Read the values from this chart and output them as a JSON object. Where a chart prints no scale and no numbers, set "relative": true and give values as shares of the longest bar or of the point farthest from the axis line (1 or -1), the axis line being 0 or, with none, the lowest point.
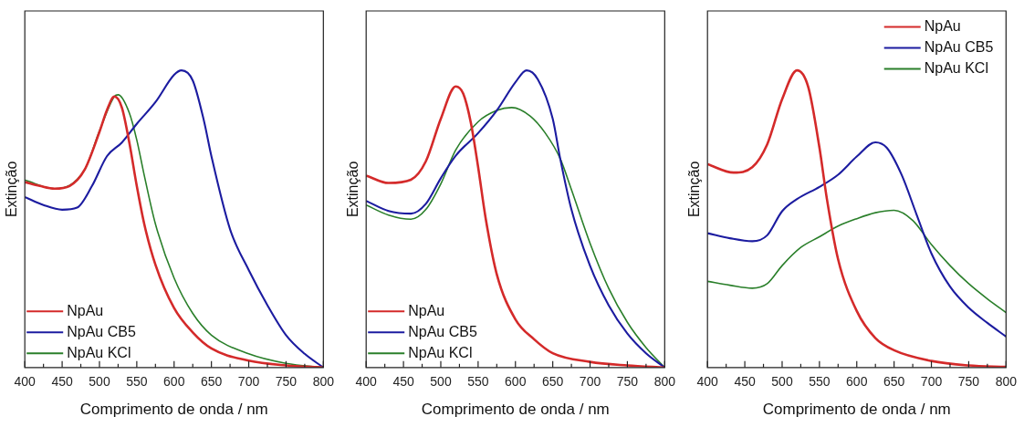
{
  "chart_data": [
    {
      "type": "line",
      "xlabel": "Comprimento de onda / nm",
      "ylabel": "Extinção",
      "relative": true,
      "legend": "bottom left",
      "xlim": [
        400,
        800
      ],
      "xticks": [
        400,
        {
          "value": 425,
          "label": null
        },
        450,
        {
          "value": 475,
          "label": null
        },
        500,
        {
          "value": 525,
          "label": null
        },
        550,
        {
          "value": 575,
          "label": null
        },
        600,
        {
          "value": 625,
          "label": null
        },
        650,
        {
          "value": 675,
          "label": null
        },
        700,
        {
          "value": 725,
          "label": null
        },
        750,
        {
          "value": 775,
          "label": null
        },
        800
      ],
      "series": [
        {
          "name": "NpAu",
          "color": "#d42a2a",
          "x": [
            400,
            420,
            440,
            460,
            480,
            500,
            510,
            520,
            530,
            540,
            550,
            560,
            575,
            600,
            625,
            650,
            700,
            750,
            800
          ],
          "values": [
            0.624,
            0.611,
            0.602,
            0.611,
            0.665,
            0.793,
            0.866,
            0.912,
            0.875,
            0.757,
            0.611,
            0.483,
            0.346,
            0.2,
            0.118,
            0.064,
            0.023,
            0.007,
            0
          ]
        },
        {
          "name": "NpAu CB5",
          "color": "#1c1ca0",
          "x": [
            400,
            425,
            450,
            470,
            490,
            510,
            530,
            550,
            575,
            600,
            610,
            625,
            640,
            650,
            675,
            700,
            725,
            750,
            775,
            800
          ],
          "values": [
            0.574,
            0.547,
            0.531,
            0.538,
            0.611,
            0.711,
            0.757,
            0.82,
            0.893,
            0.985,
            1,
            0.966,
            0.83,
            0.711,
            0.465,
            0.328,
            0.21,
            0.109,
            0.046,
            0
          ]
        },
        {
          "name": "NpAu KCl",
          "color": "#2a7f2a",
          "x": [
            400,
            440,
            480,
            500,
            520,
            525,
            540,
            550,
            560,
            575,
            600,
            625,
            650,
            700,
            750,
            800
          ],
          "values": [
            0.631,
            0.602,
            0.665,
            0.796,
            0.912,
            0.918,
            0.857,
            0.766,
            0.647,
            0.483,
            0.301,
            0.182,
            0.109,
            0.046,
            0.014,
            0
          ]
        }
      ]
    },
    {
      "type": "line",
      "xlabel": "Comprimento de onda / nm",
      "ylabel": "Extinção",
      "relative": true,
      "legend": "bottom left",
      "xlim": [
        400,
        800
      ],
      "xticks": [
        400,
        {
          "value": 425,
          "label": null
        },
        450,
        {
          "value": 475,
          "label": null
        },
        500,
        {
          "value": 525,
          "label": null
        },
        550,
        {
          "value": 575,
          "label": null
        },
        600,
        {
          "value": 625,
          "label": null
        },
        650,
        {
          "value": 675,
          "label": null
        },
        700,
        {
          "value": 725,
          "label": null
        },
        750,
        {
          "value": 775,
          "label": null
        },
        800
      ],
      "series": [
        {
          "name": "NpAu",
          "color": "#d42a2a",
          "x": [
            400,
            430,
            460,
            480,
            500,
            520,
            530,
            540,
            550,
            560,
            575,
            600,
            625,
            650,
            700,
            750,
            800
          ],
          "values": [
            0.646,
            0.621,
            0.632,
            0.694,
            0.837,
            0.946,
            0.922,
            0.827,
            0.675,
            0.504,
            0.314,
            0.162,
            0.095,
            0.048,
            0.019,
            0.007,
            0
          ]
        },
        {
          "name": "NpAu CB5",
          "color": "#1c1ca0",
          "x": [
            400,
            430,
            460,
            480,
            500,
            520,
            550,
            575,
            600,
            615,
            630,
            650,
            660,
            675,
            700,
            725,
            750,
            775,
            800
          ],
          "values": [
            0.561,
            0.527,
            0.518,
            0.551,
            0.637,
            0.713,
            0.789,
            0.865,
            0.96,
            1,
            0.97,
            0.837,
            0.703,
            0.532,
            0.342,
            0.209,
            0.114,
            0.048,
            0
          ]
        },
        {
          "name": "NpAu KCl",
          "color": "#2a7f2a",
          "x": [
            400,
            430,
            460,
            480,
            500,
            520,
            550,
            575,
            595,
            620,
            640,
            660,
            675,
            700,
            725,
            750,
            775,
            800
          ],
          "values": [
            0.547,
            0.513,
            0.499,
            0.532,
            0.618,
            0.732,
            0.827,
            0.865,
            0.875,
            0.846,
            0.789,
            0.703,
            0.599,
            0.418,
            0.266,
            0.152,
            0.067,
            0
          ]
        }
      ]
    },
    {
      "type": "line",
      "xlabel": "Comprimento de onda / nm",
      "ylabel": "Extinção",
      "relative": true,
      "legend": "top right",
      "xlim": [
        400,
        800
      ],
      "xticks": [
        400,
        {
          "value": 425,
          "label": null
        },
        450,
        {
          "value": 475,
          "label": null
        },
        500,
        {
          "value": 525,
          "label": null
        },
        550,
        {
          "value": 575,
          "label": null
        },
        600,
        {
          "value": 625,
          "label": null
        },
        650,
        {
          "value": 675,
          "label": null
        },
        700,
        {
          "value": 725,
          "label": null
        },
        750,
        {
          "value": 775,
          "label": null
        },
        800
      ],
      "series": [
        {
          "name": "NpAu",
          "color": "#d42a2a",
          "x": [
            400,
            435,
            460,
            480,
            500,
            520,
            535,
            550,
            560,
            575,
            600,
            625,
            650,
            700,
            750,
            800
          ],
          "values": [
            0.684,
            0.656,
            0.674,
            0.751,
            0.903,
            1,
            0.944,
            0.74,
            0.567,
            0.364,
            0.19,
            0.099,
            0.058,
            0.022,
            0.007,
            0.002
          ]
        },
        {
          "name": "NpAu CB5",
          "color": "#1c1ca0",
          "x": [
            400,
            430,
            460,
            480,
            500,
            520,
            550,
            575,
            600,
            625,
            640,
            660,
            680,
            700,
            725,
            750,
            775,
            800
          ],
          "values": [
            0.452,
            0.435,
            0.425,
            0.445,
            0.526,
            0.567,
            0.608,
            0.649,
            0.71,
            0.758,
            0.74,
            0.649,
            0.516,
            0.384,
            0.272,
            0.201,
            0.15,
            0.104
          ]
        },
        {
          "name": "NpAu KCl",
          "color": "#2a7f2a",
          "x": [
            400,
            430,
            460,
            480,
            500,
            525,
            550,
            575,
            600,
            625,
            650,
            675,
            700,
            725,
            750,
            775,
            800
          ],
          "values": [
            0.29,
            0.277,
            0.267,
            0.282,
            0.343,
            0.404,
            0.44,
            0.476,
            0.501,
            0.521,
            0.529,
            0.495,
            0.414,
            0.343,
            0.282,
            0.231,
            0.185
          ]
        }
      ]
    }
  ]
}
